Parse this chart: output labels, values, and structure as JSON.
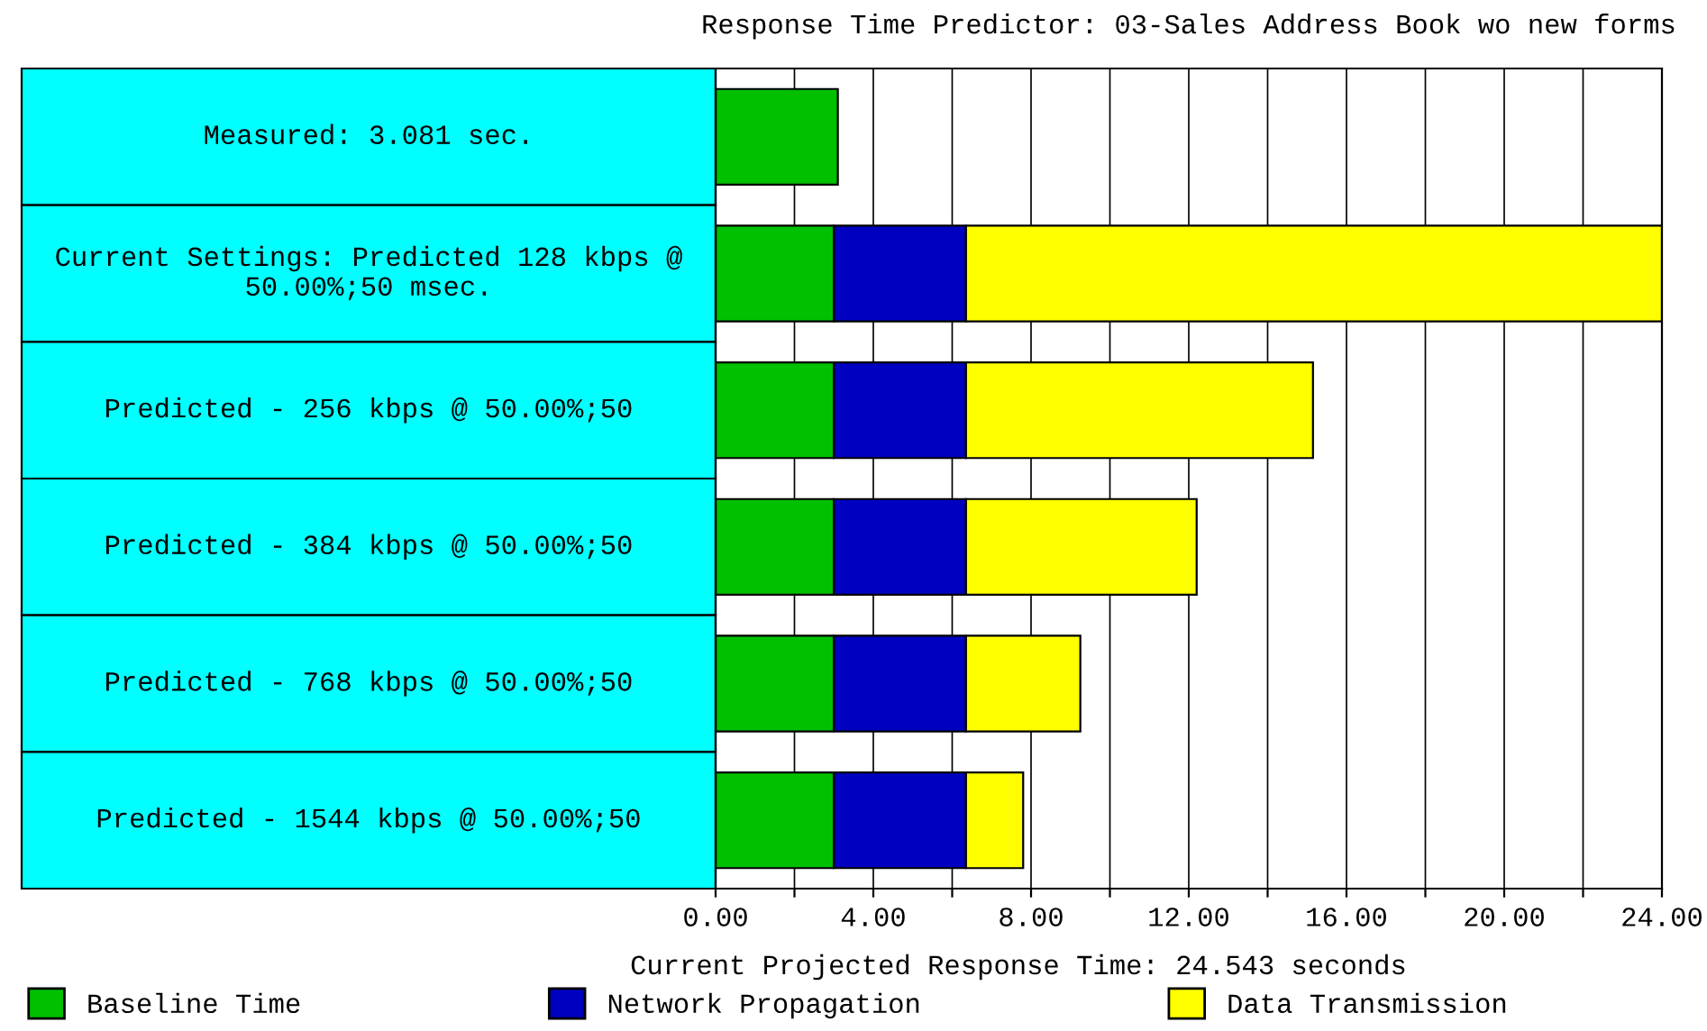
{
  "chart_data": {
    "type": "bar",
    "orientation": "horizontal",
    "stacked": true,
    "title": "Response Time Predictor: 03-Sales Address Book wo new forms",
    "xlabel": "Current Projected Response Time: 24.543 seconds",
    "categories": [
      "Measured: 3.081 sec.",
      "Current Settings: Predicted 128 kbps @\n50.00%;50 msec.",
      "Predicted - 256 kbps @ 50.00%;50",
      "Predicted - 384 kbps @ 50.00%;50",
      "Predicted - 768 kbps @ 50.00%;50",
      "Predicted - 1544 kbps @ 50.00%;50"
    ],
    "series": [
      {
        "name": "Baseline Time",
        "color": "#00c000",
        "values": [
          3.1,
          3.0,
          3.0,
          3.0,
          3.0,
          3.0
        ]
      },
      {
        "name": "Network Propagation",
        "color": "#0000c0",
        "values": [
          null,
          3.35,
          3.35,
          3.35,
          3.35,
          3.35
        ]
      },
      {
        "name": "Data Transmission",
        "color": "#ffff00",
        "values": [
          null,
          17.65,
          8.8,
          5.85,
          2.9,
          1.45
        ]
      }
    ],
    "xlim": [
      0,
      24
    ],
    "xticks": [
      {
        "value": 0,
        "label": "0.00"
      },
      {
        "value": 2,
        "label": null
      },
      {
        "value": 4,
        "label": "4.00"
      },
      {
        "value": 6,
        "label": null
      },
      {
        "value": 8,
        "label": "8.00"
      },
      {
        "value": 10,
        "label": null
      },
      {
        "value": 12,
        "label": "12.00"
      },
      {
        "value": 14,
        "label": null
      },
      {
        "value": 16,
        "label": "16.00"
      },
      {
        "value": 18,
        "label": null
      },
      {
        "value": 20,
        "label": "20.00"
      },
      {
        "value": 22,
        "label": null
      },
      {
        "value": 24,
        "label": "24.00"
      }
    ],
    "grid": "x",
    "legend": "bottom"
  }
}
